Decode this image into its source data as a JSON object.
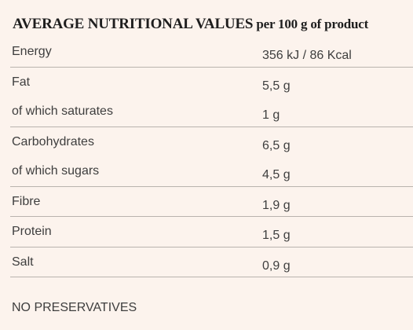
{
  "heading": {
    "main": "AVERAGE NUTRITIONAL VALUES",
    "sub": " per 100 g of product"
  },
  "groups": [
    {
      "rows": [
        {
          "label": "Energy",
          "value": "356 kJ / 86 Kcal"
        }
      ]
    },
    {
      "rows": [
        {
          "label": "Fat",
          "value": "5,5 g"
        },
        {
          "label": "of which saturates",
          "value": "1 g"
        }
      ]
    },
    {
      "rows": [
        {
          "label": "Carbohydrates",
          "value": "6,5 g"
        },
        {
          "label": "of which sugars",
          "value": "4,5 g"
        }
      ]
    },
    {
      "rows": [
        {
          "label": "Fibre",
          "value": "1,9 g"
        }
      ]
    },
    {
      "rows": [
        {
          "label": "Protein",
          "value": "1,5 g"
        }
      ]
    },
    {
      "rows": [
        {
          "label": "Salt",
          "value": "0,9 g"
        }
      ]
    }
  ],
  "footer": "NO PRESERVATIVES",
  "colors": {
    "background": "#fcf3ed",
    "divider": "#b9b3ae",
    "text": "#3e3e3e"
  }
}
